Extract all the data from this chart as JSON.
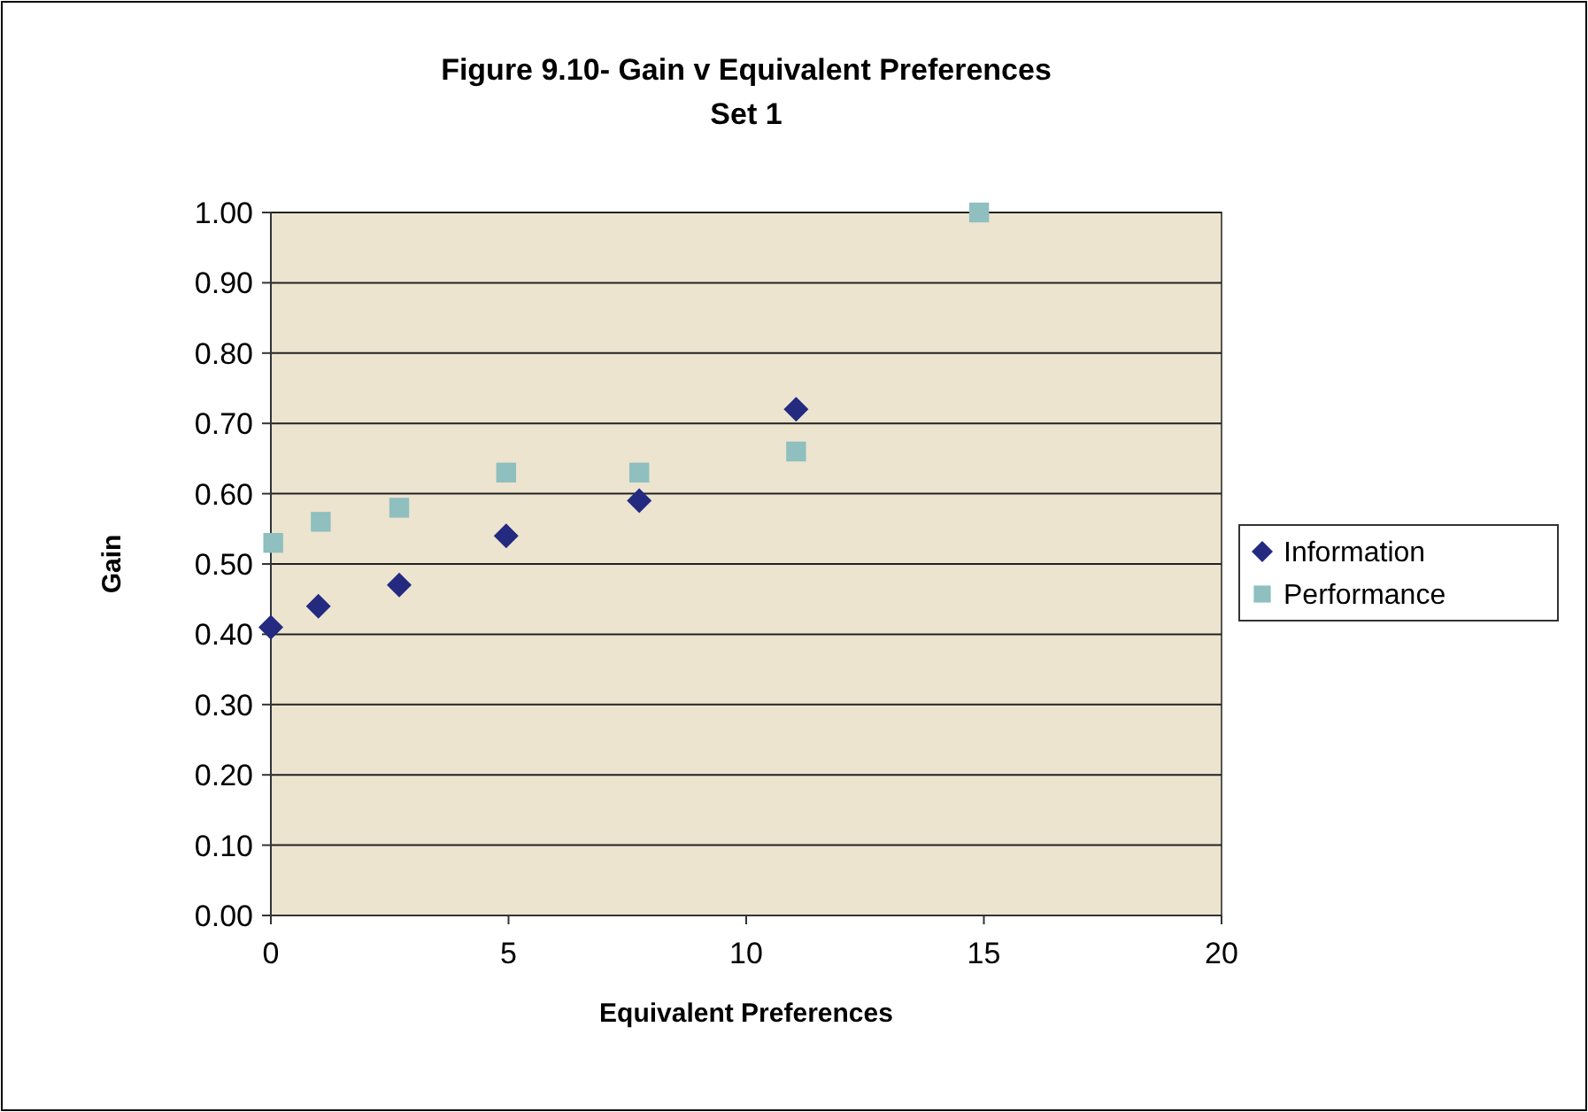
{
  "chart_data": {
    "type": "scatter",
    "title": "Figure 9.10- Gain v Equivalent Preferences",
    "subtitle": "Set 1",
    "xlabel": "Equivalent Preferences",
    "ylabel": "Gain",
    "xlim": [
      0,
      20
    ],
    "xticks": [
      0,
      5,
      10,
      15,
      20
    ],
    "ylim": [
      0,
      1
    ],
    "yticks": [
      {
        "value": 0,
        "label": "0.00"
      },
      {
        "value": 0.1,
        "label": "0.10"
      },
      {
        "value": 0.2,
        "label": "0.20"
      },
      {
        "value": 0.3,
        "label": "0.30"
      },
      {
        "value": 0.4,
        "label": "0.40"
      },
      {
        "value": 0.5,
        "label": "0.50"
      },
      {
        "value": 0.6,
        "label": "0.60"
      },
      {
        "value": 0.7,
        "label": "0.70"
      },
      {
        "value": 0.8,
        "label": "0.80"
      },
      {
        "value": 0.9,
        "label": "0.90"
      },
      {
        "value": 1,
        "label": "1.00"
      }
    ],
    "grid": "y",
    "legend": "right",
    "series": [
      {
        "name": "Information",
        "color": "#232a80",
        "marker": "diamond",
        "x": [
          0,
          1,
          2.7,
          4.95,
          7.75,
          11.05
        ],
        "values": [
          0.41,
          0.44,
          0.47,
          0.54,
          0.59,
          0.72
        ]
      },
      {
        "name": "Performance",
        "color": "#8fbfbf",
        "marker": "square",
        "x": [
          0.05,
          1.05,
          2.7,
          4.95,
          7.75,
          11.05,
          14.9
        ],
        "values": [
          0.53,
          0.56,
          0.58,
          0.63,
          0.63,
          0.66,
          1.0
        ]
      }
    ]
  }
}
